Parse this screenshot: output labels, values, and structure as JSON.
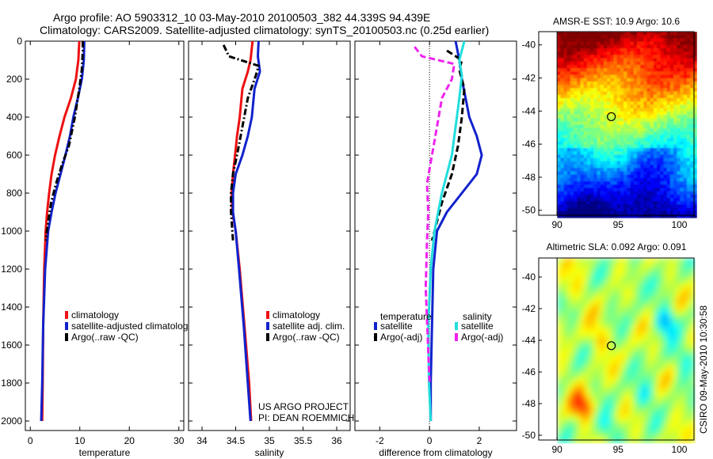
{
  "header": {
    "line1": "Argo profile: AO 5903312_10 03-May-2010 20100503_382 44.339S 94.439E",
    "line2": "Climatology: CARS2009. Satellite-adjusted climatology: synTS_20100503.nc (0.25d earlier)"
  },
  "side_label": "CSIRO 09-May-2010 10:30:58",
  "chart_data": [
    {
      "type": "line",
      "id": "temperature",
      "xlabel": "temperature",
      "ylabel": "",
      "xlim": [
        -1,
        31
      ],
      "ylim": [
        0,
        2050
      ],
      "y_inverted": true,
      "xticks": [
        0,
        10,
        20,
        30
      ],
      "yticks": [
        0,
        200,
        400,
        600,
        800,
        1000,
        1200,
        1400,
        1600,
        1800,
        2000
      ],
      "legend_position": "lower-center",
      "series": [
        {
          "name": "climatology",
          "color": "#ee1111",
          "dash": "solid",
          "x": [
            9.9,
            9.7,
            9.2,
            8.2,
            6.9,
            5.9,
            5.0,
            4.3,
            3.8,
            3.4,
            3.1,
            2.8,
            2.6,
            2.5,
            2.4
          ],
          "y": [
            0,
            100,
            200,
            300,
            400,
            500,
            600,
            700,
            800,
            900,
            1000,
            1200,
            1500,
            1800,
            2000
          ]
        },
        {
          "name": "satellite-adjusted climatology",
          "color": "#1122cc",
          "dash": "solid",
          "x": [
            10.9,
            10.8,
            10.4,
            9.6,
            8.7,
            8.0,
            7.1,
            6.1,
            5.1,
            4.3,
            3.6,
            3.0,
            2.6,
            2.4,
            2.2
          ],
          "y": [
            0,
            100,
            200,
            300,
            400,
            500,
            600,
            700,
            800,
            900,
            1000,
            1200,
            1500,
            1800,
            2000
          ]
        },
        {
          "name": "Argo(..raw -QC)",
          "color": "#000000",
          "dash": "dashdot",
          "x": [
            10.6,
            10.6,
            10.4,
            9.9,
            9.0,
            7.8,
            6.4,
            5.2,
            4.2,
            3.6,
            3.1
          ],
          "y": [
            0,
            50,
            150,
            250,
            400,
            550,
            650,
            750,
            850,
            950,
            1050
          ]
        }
      ]
    },
    {
      "type": "line",
      "id": "salinity",
      "xlabel": "salinity",
      "ylabel": "",
      "xlim": [
        33.8,
        36.2
      ],
      "ylim": [
        0,
        2050
      ],
      "y_inverted": true,
      "xticks": [
        34,
        34.5,
        35,
        35.5,
        36
      ],
      "legend_position": "lower-center",
      "annotation": [
        "US ARGO PROJECT",
        "PI: DEAN ROEMMICH"
      ],
      "series": [
        {
          "name": "climatology",
          "color": "#ee1111",
          "dash": "solid",
          "x": [
            34.75,
            34.72,
            34.68,
            34.6,
            34.56,
            34.52,
            34.49,
            34.46,
            34.44,
            34.45,
            34.5,
            34.56,
            34.63,
            34.7,
            34.73
          ],
          "y": [
            0,
            100,
            160,
            250,
            400,
            500,
            600,
            700,
            800,
            900,
            1000,
            1200,
            1500,
            1800,
            2000
          ]
        },
        {
          "name": "satellite adj. clim.",
          "color": "#1122cc",
          "dash": "solid",
          "x": [
            34.84,
            34.83,
            34.86,
            34.78,
            34.74,
            34.68,
            34.6,
            34.5,
            34.46,
            34.46,
            34.5,
            34.55,
            34.62,
            34.68,
            34.72
          ],
          "y": [
            0,
            80,
            160,
            250,
            400,
            500,
            600,
            700,
            800,
            900,
            1000,
            1200,
            1500,
            1800,
            2000
          ]
        },
        {
          "name": "Argo(..raw -QC)",
          "color": "#000000",
          "dash": "dashdot",
          "x": [
            34.32,
            34.4,
            34.84,
            34.8,
            34.68,
            34.6,
            34.52,
            34.46,
            34.43,
            34.43,
            34.46
          ],
          "y": [
            20,
            80,
            130,
            180,
            300,
            450,
            600,
            700,
            800,
            900,
            1050
          ]
        }
      ]
    },
    {
      "type": "line",
      "id": "difference",
      "xlabel": "difference from climatology",
      "ylabel": "",
      "xlim": [
        -3,
        3.5
      ],
      "ylim": [
        0,
        2050
      ],
      "y_inverted": true,
      "xticks": [
        -2,
        0,
        2
      ],
      "legend_position": "lower-center",
      "legend_groups": [
        {
          "title": "temperature",
          "items": [
            "satellite",
            "Argo(-adj)"
          ]
        },
        {
          "title": "salinity",
          "items": [
            "satellite",
            "Argo(-adj)"
          ]
        }
      ],
      "series": [
        {
          "name": "satellite",
          "group": "temperature",
          "color": "#1122cc",
          "dash": "solid",
          "x": [
            1.05,
            1.2,
            1.3,
            1.45,
            1.6,
            1.9,
            2.1,
            1.9,
            1.3,
            0.7,
            0.3,
            0.15,
            0.1,
            0.05,
            0.05
          ],
          "y": [
            0,
            100,
            200,
            300,
            400,
            500,
            600,
            700,
            800,
            900,
            1000,
            1200,
            1500,
            1800,
            2000
          ]
        },
        {
          "name": "Argo(-adj)",
          "group": "temperature",
          "color": "#000000",
          "dash": "dashed",
          "x": [
            0.7,
            1.3,
            1.2,
            1.4,
            1.3,
            1.15,
            0.9,
            0.5,
            0.3,
            0.1
          ],
          "y": [
            50,
            100,
            150,
            250,
            400,
            550,
            700,
            850,
            950,
            1050
          ]
        },
        {
          "name": "satellite",
          "group": "salinity",
          "color": "#22dddd",
          "dash": "solid",
          "x": [
            1.4,
            1.2,
            1.3,
            1.2,
            1.1,
            1.0,
            0.9,
            0.7,
            0.5,
            0.35,
            0.2,
            0.05,
            -0.05,
            -0.02,
            0.05
          ],
          "y": [
            0,
            100,
            180,
            300,
            400,
            500,
            600,
            700,
            800,
            900,
            1000,
            1200,
            1500,
            1800,
            2000
          ]
        },
        {
          "name": "Argo(-adj)",
          "group": "salinity",
          "color": "#ee22ee",
          "dash": "dashed",
          "x": [
            -0.6,
            -0.3,
            1.0,
            0.9,
            0.5,
            0.3,
            0.1,
            -0.1,
            -0.05,
            -0.1,
            -0.15,
            0.0
          ],
          "y": [
            30,
            80,
            120,
            200,
            300,
            450,
            600,
            750,
            900,
            1050,
            1300,
            1800
          ]
        }
      ]
    },
    {
      "type": "heatmap",
      "id": "sst",
      "title": "AMSR-E SST: 10.9 Argo: 10.6",
      "xlim": [
        88.5,
        101.2
      ],
      "ylim": [
        -50.3,
        -39.2
      ],
      "xticks": [
        90,
        95,
        100
      ],
      "yticks": [
        -40,
        -42,
        -44,
        -46,
        -48,
        -50
      ],
      "data_extent_x": [
        90,
        101.2
      ],
      "marker": {
        "lon": 94.44,
        "lat": -44.34
      }
    },
    {
      "type": "heatmap",
      "id": "sla",
      "title": "Altimetric SLA: 0.092 Argo: 0.091",
      "xlim": [
        88.5,
        101.2
      ],
      "ylim": [
        -50.3,
        -38.8
      ],
      "xticks": [
        90,
        95,
        100
      ],
      "yticks": [
        -40,
        -42,
        -44,
        -46,
        -48,
        -50
      ],
      "data_extent_x": [
        90,
        101.2
      ],
      "marker": {
        "lon": 94.44,
        "lat": -44.34
      }
    }
  ]
}
